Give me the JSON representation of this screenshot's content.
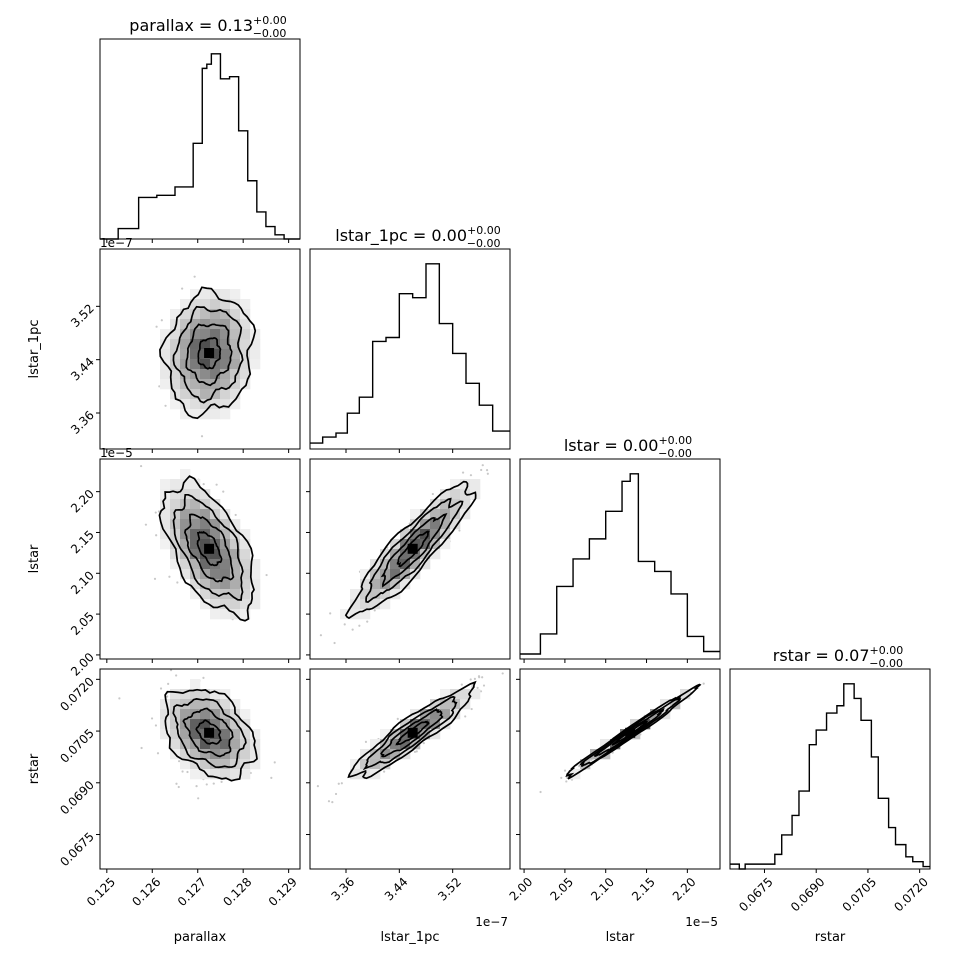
{
  "chart_data": {
    "type": "corner",
    "parameters": [
      {
        "name": "parallax",
        "title": "parallax = 0.13",
        "title_sup": "+0.00",
        "title_sub": "−0.00",
        "axis_label": "parallax",
        "range": [
          0.12485,
          0.12925
        ],
        "ticks": [
          0.125,
          0.126,
          0.127,
          0.128,
          0.129
        ],
        "tick_labels": [
          "0.125",
          "0.126",
          "0.127",
          "0.128",
          "0.129"
        ],
        "offset": "",
        "hist_edges": [
          0.12485,
          0.12525,
          0.1257,
          0.1261,
          0.1265,
          0.1269,
          0.1271,
          0.1272,
          0.1273,
          0.1275,
          0.1277,
          0.1279,
          0.1281,
          0.1283,
          0.1285,
          0.1287,
          0.1289,
          0.12925
        ],
        "hist_counts": [
          0,
          5,
          20,
          21,
          25,
          46,
          82,
          84,
          89,
          77,
          78,
          52,
          28,
          13,
          6,
          2,
          0
        ]
      },
      {
        "name": "lstar_1pc",
        "title": "lstar_1pc = 0.00",
        "title_sup": "+0.00",
        "title_sub": "−0.00",
        "axis_label": "lstar_1pc",
        "range": [
          3.306,
          3.606
        ],
        "ticks": [
          3.36,
          3.44,
          3.52
        ],
        "tick_labels": [
          "3.36",
          "3.44",
          "3.52"
        ],
        "offset": "1e−7",
        "hist_edges": [
          3.306,
          3.325,
          3.345,
          3.362,
          3.38,
          3.4,
          3.42,
          3.44,
          3.46,
          3.48,
          3.5,
          3.52,
          3.54,
          3.56,
          3.58,
          3.606
        ],
        "hist_counts": [
          3,
          6,
          8,
          18,
          26,
          54,
          56,
          78,
          76,
          93,
          63,
          48,
          33,
          22,
          9
        ]
      },
      {
        "name": "lstar",
        "title": "lstar = 0.00",
        "title_sup": "+0.00",
        "title_sub": "−0.00",
        "axis_label": "lstar",
        "range": [
          1.995,
          2.24
        ],
        "ticks": [
          2.0,
          2.05,
          2.1,
          2.15,
          2.2
        ],
        "tick_labels": [
          "2.00",
          "2.05",
          "2.10",
          "2.15",
          "2.20"
        ],
        "offset": "1e−5",
        "hist_edges": [
          1.995,
          2.02,
          2.04,
          2.06,
          2.08,
          2.1,
          2.12,
          2.13,
          2.14,
          2.16,
          2.18,
          2.2,
          2.22,
          2.24
        ],
        "hist_counts": [
          2,
          10,
          29,
          40,
          48,
          59,
          71,
          74,
          39,
          35,
          26,
          9,
          3
        ]
      },
      {
        "name": "rstar",
        "title": "rstar = 0.07",
        "title_sup": "+0.00",
        "title_sub": "−0.00",
        "axis_label": "rstar",
        "range": [
          0.0665,
          0.0723
        ],
        "ticks": [
          0.0675,
          0.069,
          0.0705,
          0.072
        ],
        "tick_labels": [
          "0.0675",
          "0.0690",
          "0.0705",
          "0.0720"
        ],
        "offset": "",
        "hist_edges": [
          0.0665,
          0.06677,
          0.06694,
          0.0671,
          0.0674,
          0.0678,
          0.068,
          0.0683,
          0.0685,
          0.0688,
          0.069,
          0.0693,
          0.0696,
          0.0698,
          0.0701,
          0.0703,
          0.0706,
          0.0708,
          0.0711,
          0.0713,
          0.0716,
          0.0718,
          0.0721,
          0.0723
        ],
        "hist_counts": [
          2,
          0,
          2,
          2,
          2,
          6,
          14,
          22,
          32,
          51,
          57,
          64,
          67,
          76,
          70,
          61,
          46,
          29,
          17,
          10,
          5,
          3,
          1
        ]
      }
    ],
    "pairs": [
      {
        "x": "parallax",
        "y": "lstar_1pc",
        "mean": [
          0.12725,
          3.45
        ],
        "sd": [
          0.00048,
          0.045
        ],
        "corr": 0.1
      },
      {
        "x": "parallax",
        "y": "lstar",
        "mean": [
          0.12725,
          2.13
        ],
        "sd": [
          0.0005,
          0.04
        ],
        "corr": -0.55
      },
      {
        "x": "lstar_1pc",
        "y": "lstar",
        "mean": [
          3.46,
          2.13
        ],
        "sd": [
          0.045,
          0.04
        ],
        "corr": 0.9
      },
      {
        "x": "parallax",
        "y": "rstar",
        "mean": [
          0.12725,
          0.07045
        ],
        "sd": [
          0.0005,
          0.00065
        ],
        "corr": -0.35
      },
      {
        "x": "lstar_1pc",
        "y": "rstar",
        "mean": [
          3.46,
          0.07045
        ],
        "sd": [
          0.045,
          0.00065
        ],
        "corr": 0.92
      },
      {
        "x": "lstar",
        "y": "rstar",
        "mean": [
          2.13,
          0.07045
        ],
        "sd": [
          0.04,
          0.00065
        ],
        "corr": 0.99
      }
    ],
    "contour_levels": [
      0.5,
      1.0,
      1.5,
      2.0
    ],
    "grid": false
  }
}
